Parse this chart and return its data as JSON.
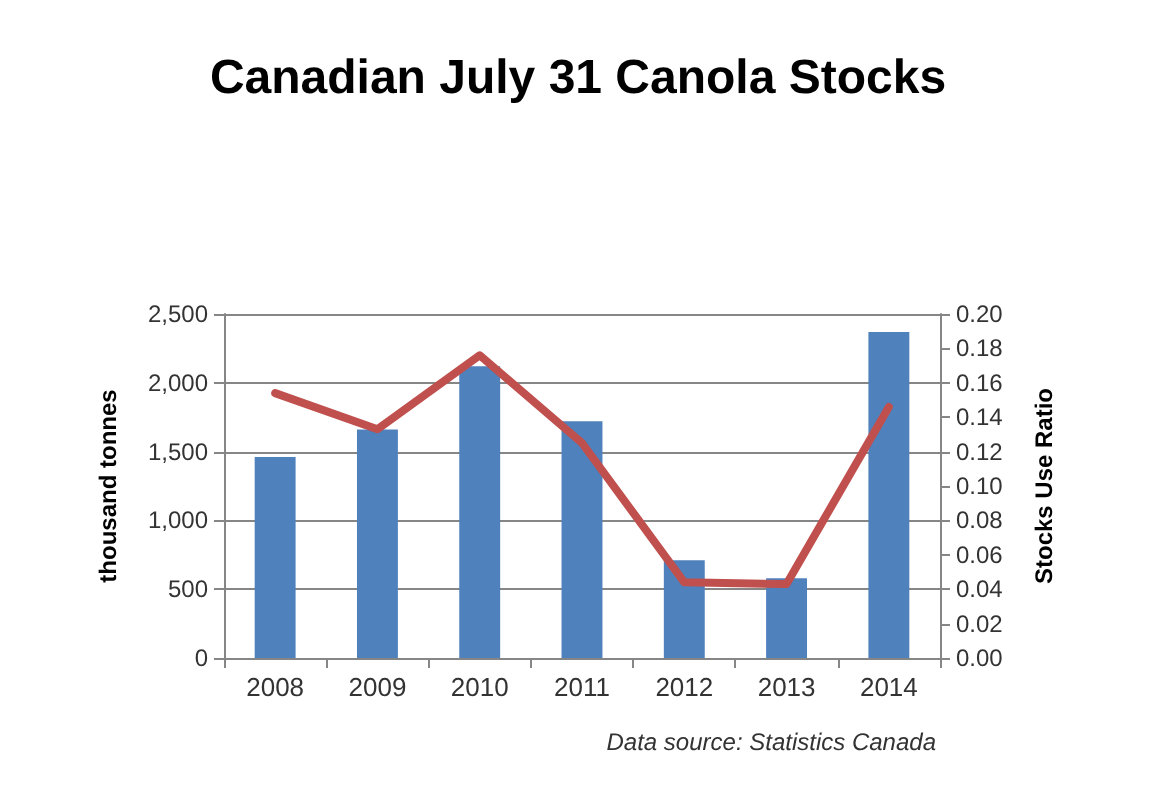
{
  "chart_data": {
    "type": "bar",
    "title": "Canadian July 31 Canola Stocks",
    "categories": [
      "2008",
      "2009",
      "2010",
      "2011",
      "2012",
      "2013",
      "2014"
    ],
    "series": [
      {
        "color": "#4f81bd",
        "values": [
          1460,
          1660,
          2120,
          1720,
          710,
          580,
          2370
        ]
      },
      {
        "type": "line",
        "axis": "y2",
        "color": "#c0504d",
        "values": [
          0.154,
          0.133,
          0.176,
          0.125,
          0.044,
          0.043,
          0.146
        ]
      }
    ],
    "ylabel": "thousand tonnes",
    "y2label": "Stocks Use Ratio",
    "ylim": [
      0,
      2500
    ],
    "yticks": [
      {
        "value": 0,
        "label": "0"
      },
      {
        "value": 500,
        "label": "500"
      },
      {
        "value": 1000,
        "label": "1,000"
      },
      {
        "value": 1500,
        "label": "1,500"
      },
      {
        "value": 2000,
        "label": "2,000"
      },
      {
        "value": 2500,
        "label": "2,500"
      }
    ],
    "y2lim": [
      0,
      0.2
    ],
    "y2ticks": [
      {
        "value": 0,
        "label": "0.00"
      },
      {
        "value": 0.02,
        "label": "0.02"
      },
      {
        "value": 0.04,
        "label": "0.04"
      },
      {
        "value": 0.06,
        "label": "0.06"
      },
      {
        "value": 0.08,
        "label": "0.08"
      },
      {
        "value": 0.1,
        "label": "0.10"
      },
      {
        "value": 0.12,
        "label": "0.12"
      },
      {
        "value": 0.14,
        "label": "0.14"
      },
      {
        "value": 0.16,
        "label": "0.16"
      },
      {
        "value": 0.18,
        "label": "0.18"
      },
      {
        "value": 0.2,
        "label": "0.20"
      }
    ],
    "annotations": [
      "Data source: Statistics Canada"
    ],
    "grid": "y",
    "marker": "none",
    "line_style": "solid"
  }
}
